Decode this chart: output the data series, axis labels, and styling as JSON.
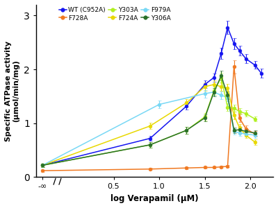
{
  "xlabel": "log Verapamil (μM)",
  "ylabel": "Specific ATPase activity\n(μmol/min/mg)",
  "xlim_display": [
    -0.35,
    2.25
  ],
  "ylim": [
    0,
    3.2
  ],
  "yticks": [
    0,
    1,
    2,
    3
  ],
  "xtick_positions": [
    -0.28,
    0.5,
    1.0,
    1.5,
    2.0
  ],
  "xticklabels": [
    "-∞",
    "0.5",
    "1.0",
    "1.5",
    "2.0"
  ],
  "neg_inf_x": -0.28,
  "series": {
    "WT (C952A)": {
      "color": "#1414f0",
      "x": [
        -0.28,
        0.9,
        1.3,
        1.5,
        1.6,
        1.68,
        1.75,
        1.82,
        1.88,
        1.95,
        2.05,
        2.12
      ],
      "y": [
        0.22,
        0.72,
        1.32,
        1.72,
        1.85,
        2.3,
        2.78,
        2.48,
        2.35,
        2.2,
        2.08,
        1.93
      ],
      "yerr": [
        0.03,
        0.05,
        0.06,
        0.07,
        0.08,
        0.1,
        0.12,
        0.1,
        0.09,
        0.08,
        0.07,
        0.08
      ]
    },
    "F728A": {
      "color": "#f07820",
      "x": [
        -0.28,
        0.9,
        1.3,
        1.5,
        1.6,
        1.68,
        1.75,
        1.82,
        1.88,
        1.95,
        2.05
      ],
      "y": [
        0.12,
        0.15,
        0.17,
        0.18,
        0.18,
        0.19,
        0.2,
        2.05,
        1.1,
        0.9,
        0.8
      ],
      "yerr": [
        0.02,
        0.02,
        0.02,
        0.02,
        0.02,
        0.02,
        0.02,
        0.12,
        0.08,
        0.06,
        0.05
      ]
    },
    "F724A": {
      "color": "#e8d800",
      "x": [
        -0.28,
        0.9,
        1.3,
        1.5,
        1.6,
        1.68,
        1.75,
        1.82,
        1.88,
        1.95,
        2.05
      ],
      "y": [
        0.22,
        0.95,
        1.38,
        1.68,
        1.72,
        1.68,
        1.65,
        1.15,
        0.92,
        0.78,
        0.65
      ],
      "yerr": [
        0.03,
        0.06,
        0.07,
        0.08,
        0.08,
        0.08,
        0.08,
        0.07,
        0.06,
        0.05,
        0.05
      ]
    },
    "F979A": {
      "color": "#78d8f5",
      "x": [
        -0.28,
        1.0,
        1.5,
        1.6,
        1.68,
        1.75,
        1.82,
        1.88,
        1.95,
        2.05
      ],
      "y": [
        0.22,
        1.35,
        1.55,
        1.58,
        1.52,
        1.48,
        0.85,
        0.82,
        0.8,
        0.78
      ],
      "yerr": [
        0.03,
        0.07,
        0.07,
        0.07,
        0.07,
        0.07,
        0.06,
        0.05,
        0.05,
        0.05
      ]
    },
    "Y303A": {
      "color": "#b0f020",
      "x": [
        -0.28,
        0.9,
        1.3,
        1.5,
        1.6,
        1.68,
        1.75,
        1.82,
        1.88,
        1.95,
        2.05
      ],
      "y": [
        0.22,
        0.6,
        0.87,
        1.12,
        1.6,
        1.85,
        1.3,
        1.28,
        1.22,
        1.18,
        1.08
      ],
      "yerr": [
        0.03,
        0.05,
        0.06,
        0.07,
        0.08,
        0.09,
        0.07,
        0.06,
        0.06,
        0.06,
        0.05
      ]
    },
    "Y306A": {
      "color": "#287028",
      "x": [
        -0.28,
        0.9,
        1.3,
        1.5,
        1.6,
        1.68,
        1.75,
        1.82,
        1.88,
        1.95,
        2.05
      ],
      "y": [
        0.22,
        0.6,
        0.87,
        1.1,
        1.58,
        1.88,
        1.52,
        0.87,
        0.88,
        0.85,
        0.82
      ],
      "yerr": [
        0.03,
        0.05,
        0.06,
        0.07,
        0.08,
        0.09,
        0.07,
        0.05,
        0.05,
        0.05,
        0.05
      ]
    }
  },
  "legend_order": [
    "WT (C952A)",
    "F728A",
    "Y303A",
    "F724A",
    "F979A",
    "Y306A"
  ],
  "background_color": "#ffffff"
}
